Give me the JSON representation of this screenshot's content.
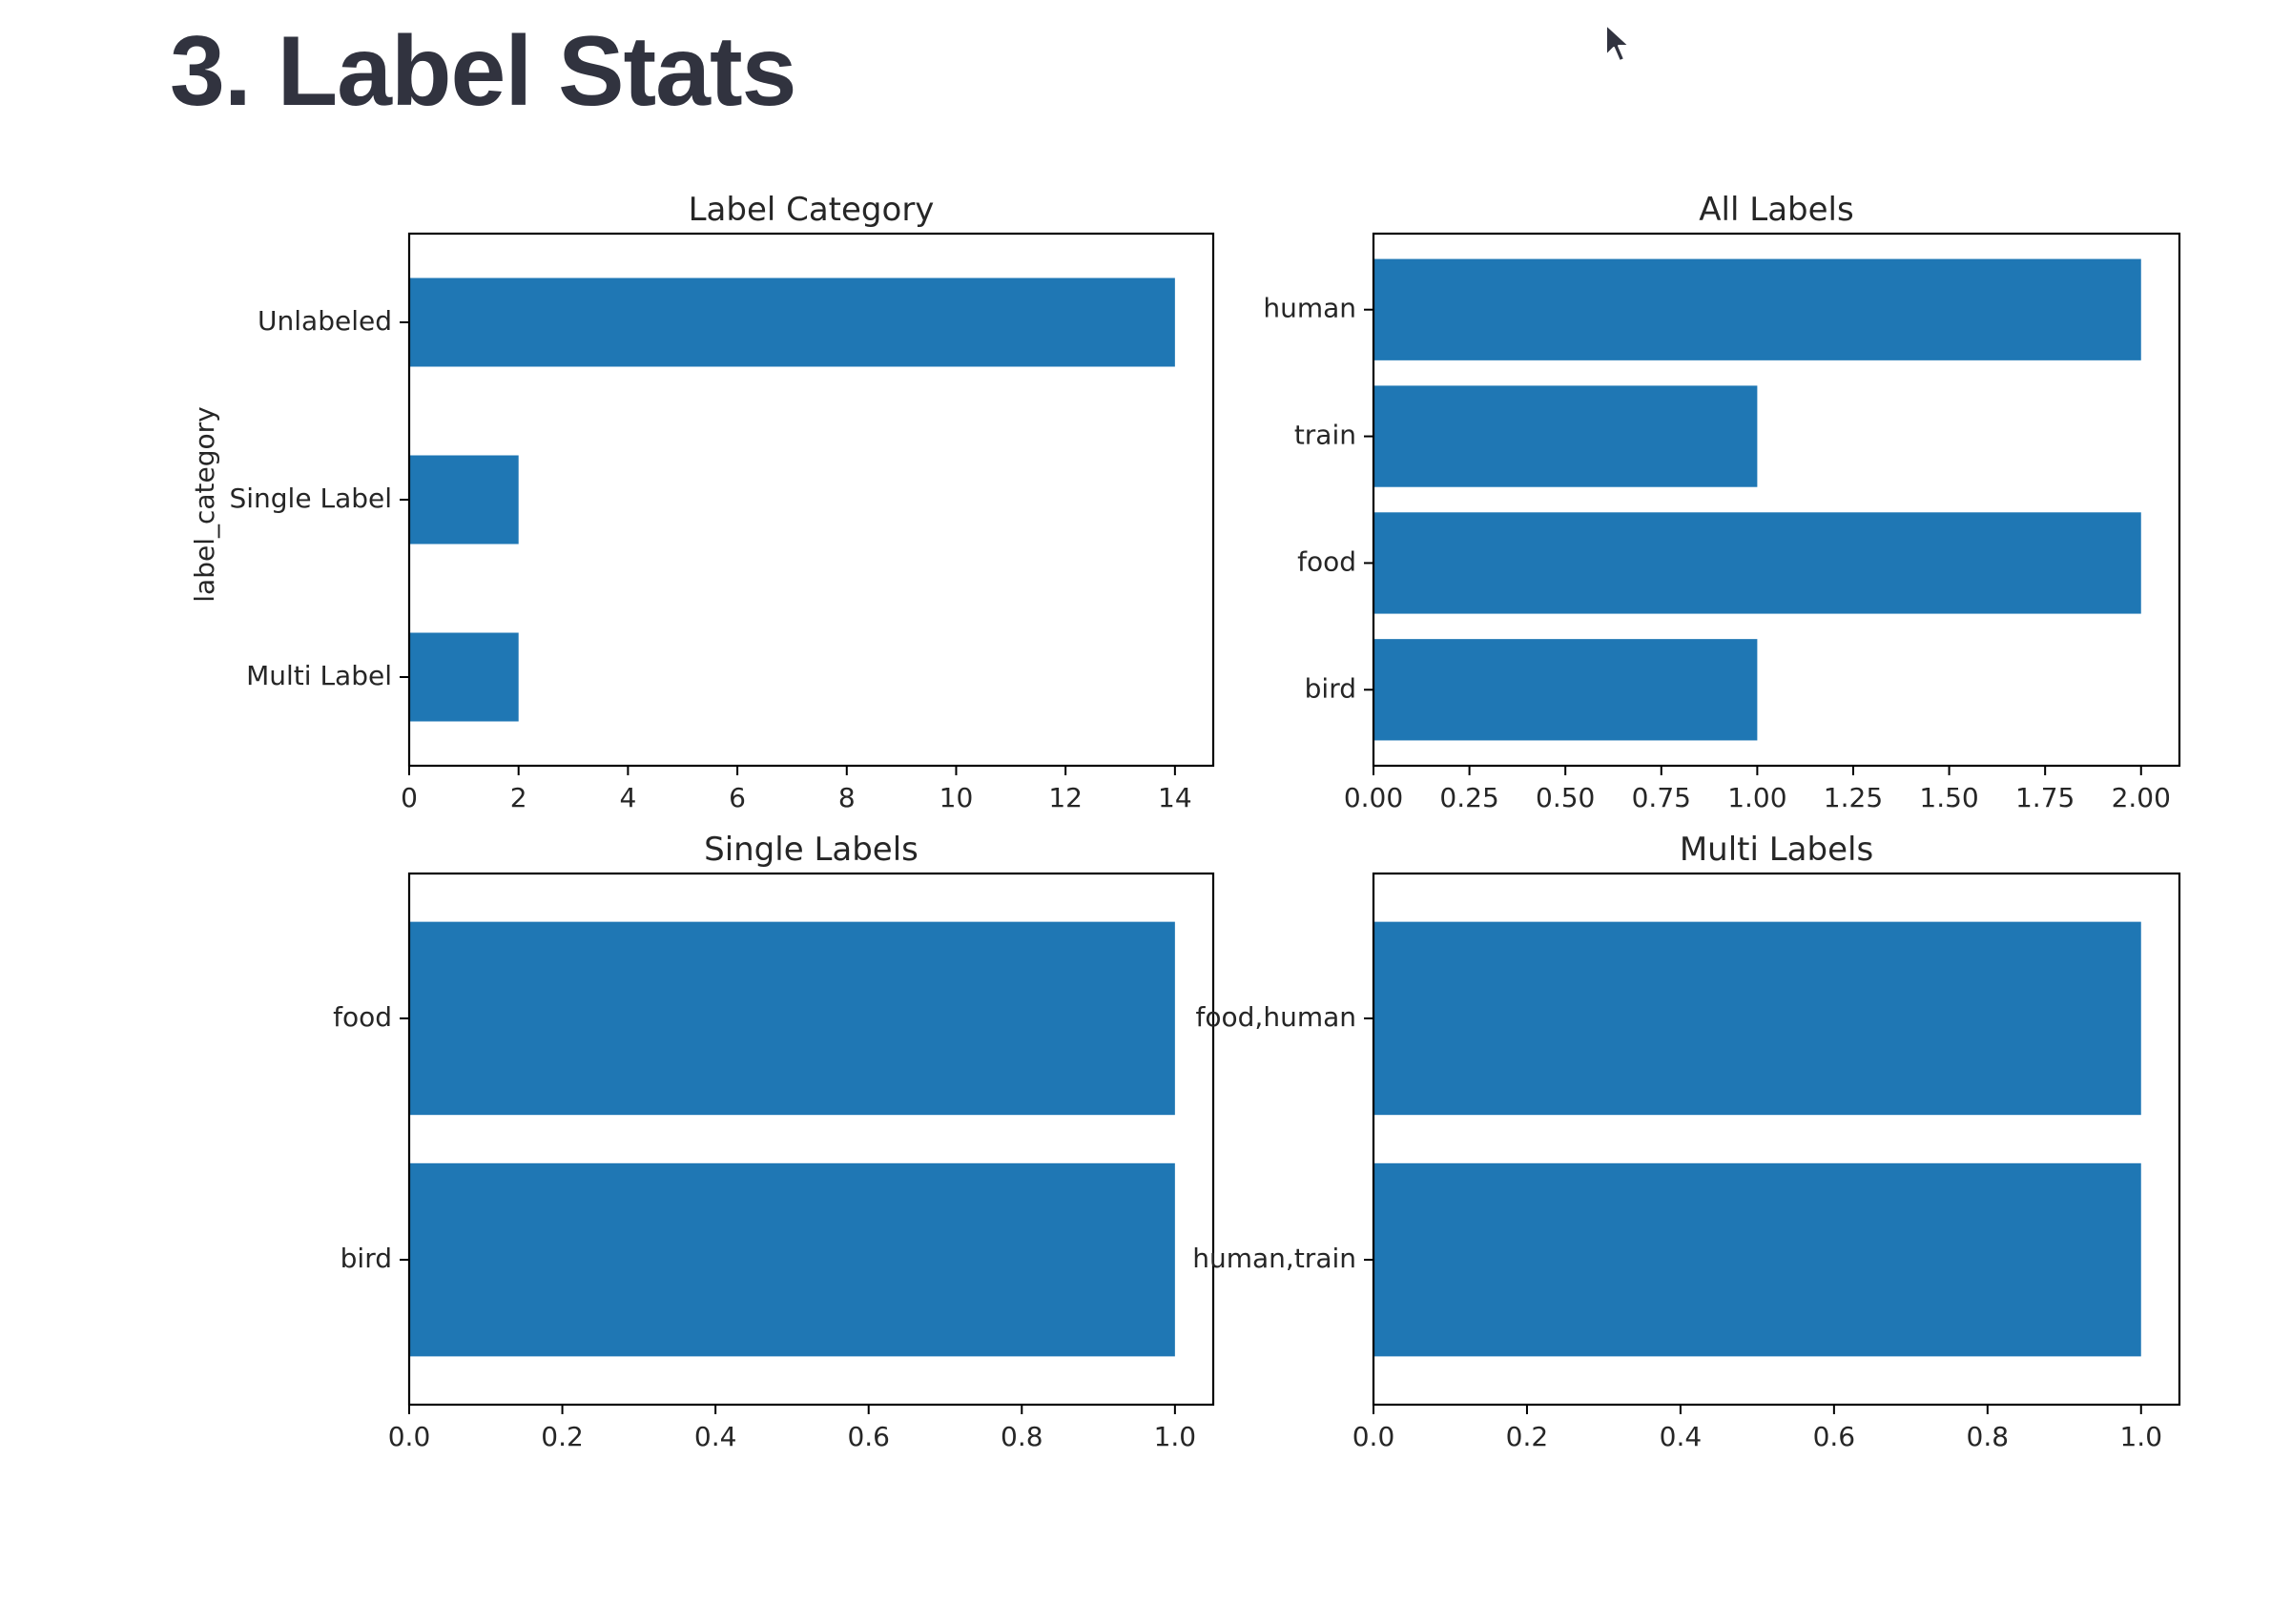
{
  "page": {
    "title": "3. Label Stats"
  },
  "colors": {
    "bar": "#1f77b4",
    "axis": "#000000",
    "text": "#262626",
    "title": "#31333f"
  },
  "icons": {
    "cursor": "mouse-pointer-icon"
  },
  "chart_data": [
    {
      "type": "bar",
      "orientation": "horizontal",
      "title": "Label Category",
      "ylabel": "label_category",
      "xlabel": "",
      "categories": [
        "Unlabeled",
        "Single Label",
        "Multi Label"
      ],
      "values": [
        14,
        2,
        2
      ],
      "xlim": [
        0,
        14.7
      ],
      "xticks": [
        0,
        2,
        4,
        6,
        8,
        10,
        12,
        14
      ],
      "xtick_labels": [
        "0",
        "2",
        "4",
        "6",
        "8",
        "10",
        "12",
        "14"
      ],
      "grid": false,
      "legend": "none"
    },
    {
      "type": "bar",
      "orientation": "horizontal",
      "title": "All Labels",
      "ylabel": "",
      "xlabel": "",
      "categories": [
        "human",
        "train",
        "food",
        "bird"
      ],
      "values": [
        2,
        1,
        2,
        1
      ],
      "xlim": [
        0,
        2.1
      ],
      "xticks": [
        0,
        0.25,
        0.5,
        0.75,
        1.0,
        1.25,
        1.5,
        1.75,
        2.0
      ],
      "xtick_labels": [
        "0.00",
        "0.25",
        "0.50",
        "0.75",
        "1.00",
        "1.25",
        "1.50",
        "1.75",
        "2.00"
      ],
      "grid": false,
      "legend": "none"
    },
    {
      "type": "bar",
      "orientation": "horizontal",
      "title": "Single Labels",
      "ylabel": "",
      "xlabel": "",
      "categories": [
        "food",
        "bird"
      ],
      "values": [
        1,
        1
      ],
      "xlim": [
        0,
        1.05
      ],
      "xticks": [
        0,
        0.2,
        0.4,
        0.6,
        0.8,
        1.0
      ],
      "xtick_labels": [
        "0.0",
        "0.2",
        "0.4",
        "0.6",
        "0.8",
        "1.0"
      ],
      "grid": false,
      "legend": "none"
    },
    {
      "type": "bar",
      "orientation": "horizontal",
      "title": "Multi Labels",
      "ylabel": "",
      "xlabel": "",
      "categories": [
        "food,human",
        "human,train"
      ],
      "values": [
        1,
        1
      ],
      "xlim": [
        0,
        1.05
      ],
      "xticks": [
        0,
        0.2,
        0.4,
        0.6,
        0.8,
        1.0
      ],
      "xtick_labels": [
        "0.0",
        "0.2",
        "0.4",
        "0.6",
        "0.8",
        "1.0"
      ],
      "grid": false,
      "legend": "none"
    }
  ]
}
